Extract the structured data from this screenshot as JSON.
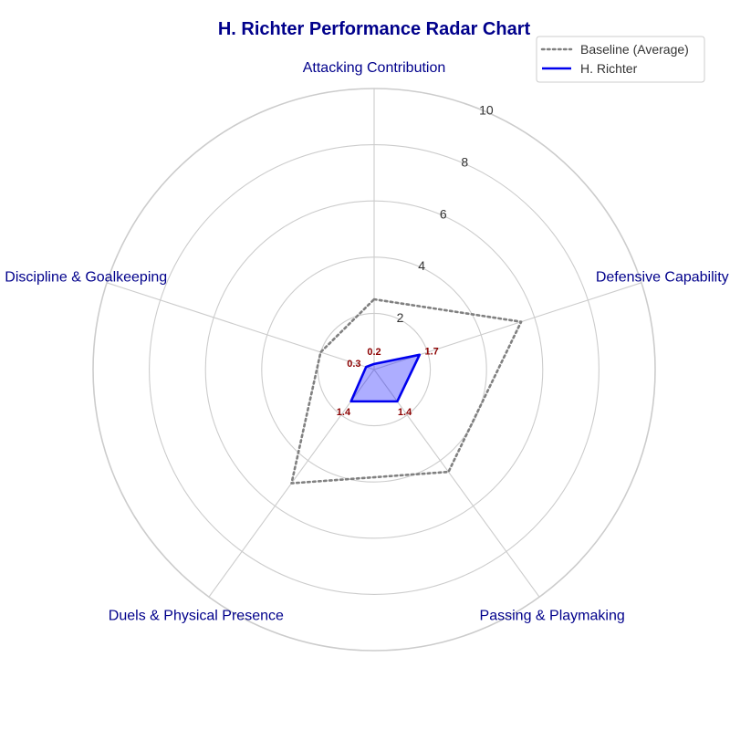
{
  "chart_data": {
    "type": "radar",
    "title": "H. Richter Performance Radar Chart",
    "axes": [
      "Attacking Contribution",
      "Defensive Capability",
      "Passing & Playmaking",
      "Duels & Physical Presence",
      "Discipline & Goalkeeping"
    ],
    "rlim": [
      0,
      10
    ],
    "ticks": [
      2,
      4,
      6,
      8,
      10
    ],
    "grid": true,
    "legend_position": "top-right",
    "series": [
      {
        "name": "Baseline (Average)",
        "values": [
          2.5,
          5.5,
          4.5,
          5.0,
          2.0
        ],
        "color": "#808080",
        "style": "dotted",
        "fill": false
      },
      {
        "name": "H. Richter",
        "values": [
          0.2,
          1.7,
          1.4,
          1.4,
          0.3
        ],
        "color": "#0000EE",
        "style": "solid",
        "fill": true,
        "fill_color": "#0000FF",
        "data_labels": [
          "0.2",
          "1.7",
          "1.4",
          "1.4",
          "0.3"
        ]
      }
    ]
  }
}
